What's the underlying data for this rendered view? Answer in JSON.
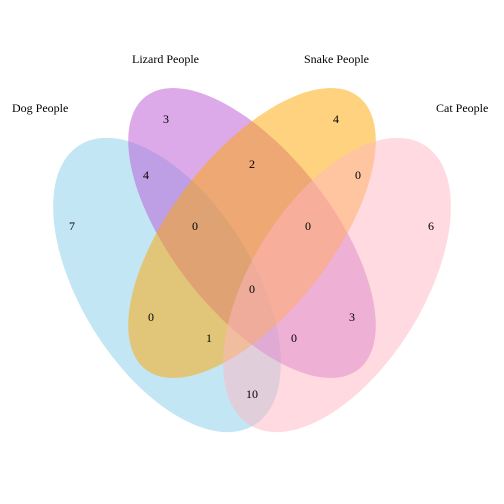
{
  "sets": [
    {
      "id": "dog",
      "label": "Dog People",
      "color": "#87CEEB"
    },
    {
      "id": "lizard",
      "label": "Lizard People",
      "color": "#BA55D3"
    },
    {
      "id": "snake",
      "label": "Snake People",
      "color": "#FFA500"
    },
    {
      "id": "cat",
      "label": "Cat People",
      "color": "#FFB6C1"
    }
  ],
  "regions": {
    "dog_only": "7",
    "lizard_only": "3",
    "snake_only": "4",
    "cat_only": "6",
    "dog_lizard": "4",
    "lizard_snake": "2",
    "snake_cat": "0",
    "dog_cat": "10",
    "dog_lizard_snake": "0",
    "lizard_snake_cat": "0",
    "dog_snake": "0",
    "lizard_cat": "3",
    "dog_snake_cat": "1",
    "dog_lizard_cat": "0",
    "all_four": "0"
  }
}
